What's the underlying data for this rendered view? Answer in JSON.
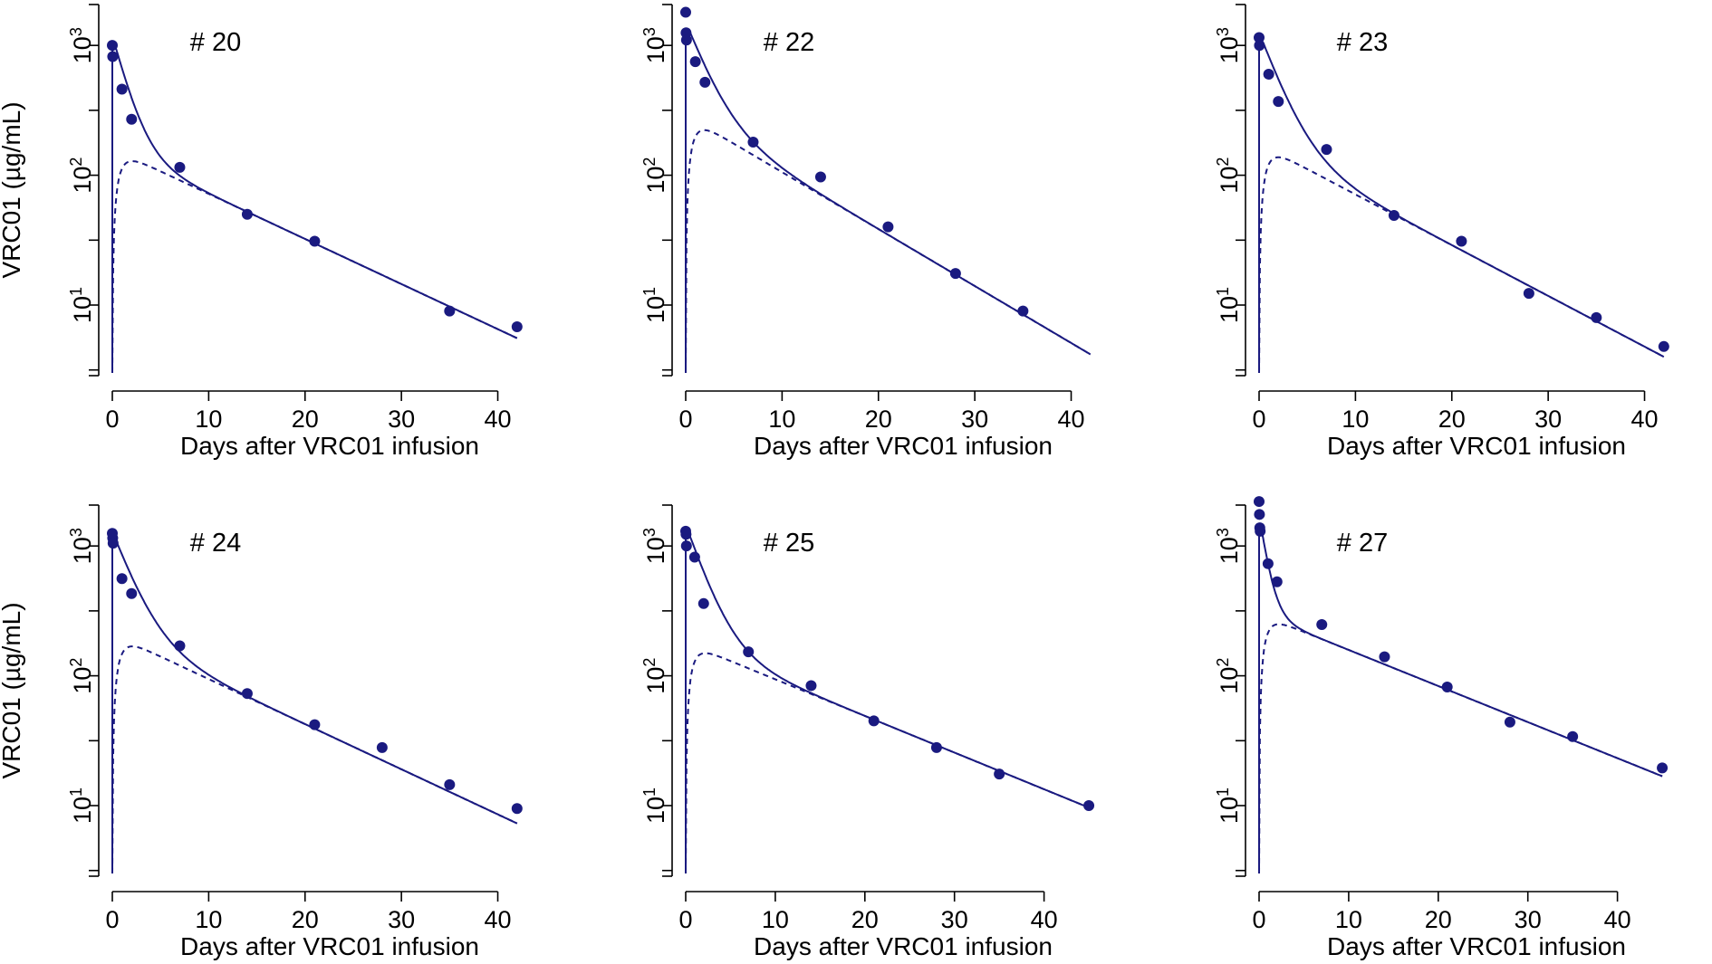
{
  "figure": {
    "type": "small-multiples",
    "y_axis_label": "VRC01 (µg/mL)",
    "x_axis_label": "Days after VRC01 infusion",
    "series_color": "#1a1a80"
  },
  "chart_data": [
    {
      "type": "line",
      "title": "# 20",
      "xlabel": "Days after VRC01 infusion",
      "ylabel": "VRC01 (µg/mL)",
      "yscale": "log10",
      "xlim": [
        0,
        42
      ],
      "ylim": [
        3,
        2000
      ],
      "xticks": [
        "0",
        "10",
        "20",
        "30",
        "40"
      ],
      "yticks": [
        "10^1",
        "10^2",
        "10^3"
      ],
      "observed": {
        "x": [
          0,
          0.04,
          1,
          2,
          7,
          14,
          21,
          35,
          42
        ],
        "y": [
          1000,
          820,
          460,
          270,
          115,
          50,
          31,
          9,
          6.8
        ]
      },
      "model": {
        "A": 1050,
        "alpha": 0.7,
        "B": 160,
        "beta": 0.08,
        "ka": 1.5
      }
    },
    {
      "type": "line",
      "title": "# 22",
      "xlabel": "Days after VRC01 infusion",
      "ylabel": "",
      "yscale": "log10",
      "xlim": [
        0,
        42
      ],
      "ylim": [
        3,
        2000
      ],
      "xticks": [
        "0",
        "10",
        "20",
        "30",
        "40"
      ],
      "yticks": [
        "10^1",
        "10^2",
        "10^3"
      ],
      "observed": {
        "x": [
          0,
          0.04,
          0.08,
          1,
          2,
          7,
          14,
          21,
          28,
          35
        ],
        "y": [
          1800,
          1250,
          1100,
          750,
          520,
          180,
          97,
          40,
          17.5,
          9
        ]
      },
      "model": {
        "A": 1250,
        "alpha": 0.5,
        "B": 290,
        "beta": 0.101,
        "ka": 1.5
      }
    },
    {
      "type": "line",
      "title": "# 23",
      "xlabel": "Days after VRC01 infusion",
      "ylabel": "",
      "yscale": "log10",
      "xlim": [
        0,
        42
      ],
      "ylim": [
        3,
        2000
      ],
      "xticks": [
        "0",
        "10",
        "20",
        "30",
        "40"
      ],
      "yticks": [
        "10^1",
        "10^2",
        "10^3"
      ],
      "observed": {
        "x": [
          0,
          0.04,
          1,
          2,
          7,
          14,
          21,
          28,
          35,
          42
        ],
        "y": [
          1150,
          1000,
          600,
          370,
          158,
          49,
          31,
          12.3,
          8,
          4.8
        ]
      },
      "model": {
        "A": 1100,
        "alpha": 0.5,
        "B": 175,
        "beta": 0.09,
        "ka": 1.5
      }
    },
    {
      "type": "line",
      "title": "# 24",
      "xlabel": "Days after VRC01 infusion",
      "ylabel": "VRC01 (µg/mL)",
      "yscale": "log10",
      "xlim": [
        0,
        42
      ],
      "ylim": [
        3,
        2000
      ],
      "xticks": [
        "0",
        "10",
        "20",
        "30",
        "40"
      ],
      "yticks": [
        "10^1",
        "10^2",
        "10^3"
      ],
      "observed": {
        "x": [
          0,
          0.04,
          0.08,
          1,
          2,
          7,
          14,
          21,
          28,
          35,
          42
        ],
        "y": [
          1250,
          1150,
          1050,
          560,
          430,
          170,
          73,
          42,
          28,
          14.5,
          9.5
        ]
      },
      "model": {
        "A": 1100,
        "alpha": 0.5,
        "B": 210,
        "beta": 0.08,
        "ka": 1.5
      }
    },
    {
      "type": "line",
      "title": "# 25",
      "xlabel": "Days after VRC01 infusion",
      "ylabel": "",
      "yscale": "log10",
      "xlim": [
        0,
        45
      ],
      "ylim": [
        3,
        2000
      ],
      "xticks": [
        "0",
        "10",
        "20",
        "30",
        "40"
      ],
      "yticks": [
        "10^1",
        "10^2",
        "10^3"
      ],
      "observed": {
        "x": [
          0,
          0.04,
          0.08,
          1,
          2,
          7,
          14,
          21,
          28,
          35,
          45
        ],
        "y": [
          1300,
          1230,
          1000,
          820,
          360,
          153,
          84,
          45,
          28,
          17.5,
          10
        ]
      },
      "model": {
        "A": 1300,
        "alpha": 0.5,
        "B": 180,
        "beta": 0.065,
        "ka": 1.5
      }
    },
    {
      "type": "line",
      "title": "# 27",
      "xlabel": "Days after VRC01 infusion",
      "ylabel": "",
      "yscale": "log10",
      "xlim": [
        0,
        45
      ],
      "ylim": [
        3,
        2000
      ],
      "xticks": [
        "0",
        "10",
        "20",
        "30",
        "40"
      ],
      "yticks": [
        "10^1",
        "10^2",
        "10^3"
      ],
      "observed": {
        "x": [
          0,
          0.04,
          0.08,
          0.12,
          1,
          2,
          7,
          14,
          21,
          28,
          35,
          45
        ],
        "y": [
          2200,
          1750,
          1380,
          1300,
          730,
          530,
          248,
          140,
          82,
          44,
          34,
          19.5
        ]
      },
      "model": {
        "A": 1500,
        "alpha": 1.2,
        "B": 300,
        "beta": 0.064,
        "ka": 1.5
      }
    }
  ]
}
